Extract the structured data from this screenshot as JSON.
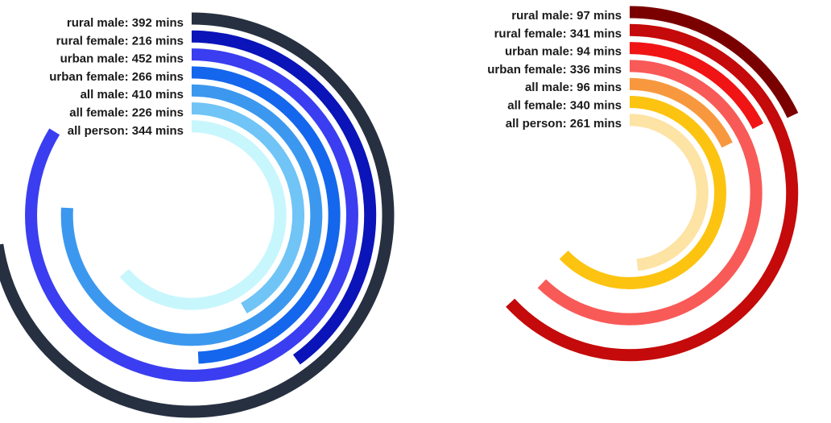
{
  "chart_data": [
    {
      "type": "radial-bar",
      "unit": "mins",
      "max": 540,
      "series": [
        {
          "label": "rural male: 392 mins",
          "value": 392,
          "color": "#263040"
        },
        {
          "label": "rural female: 216 mins",
          "value": 216,
          "color": "#0a14b8"
        },
        {
          "label": "urban male: 452 mins",
          "value": 452,
          "color": "#3a3ef0"
        },
        {
          "label": "urban female: 266 mins",
          "value": 266,
          "color": "#1466ec"
        },
        {
          "label": "all male: 410 mins",
          "value": 410,
          "color": "#3c98ef"
        },
        {
          "label": "all female: 226 mins",
          "value": 226,
          "color": "#70c4f6"
        },
        {
          "label": "all person: 344 mins",
          "value": 344,
          "color": "#c8f6fd"
        }
      ]
    },
    {
      "type": "radial-bar",
      "unit": "mins",
      "max": 540,
      "series": [
        {
          "label": "rural male: 97 mins",
          "value": 97,
          "color": "#7a0000"
        },
        {
          "label": "rural female: 341 mins",
          "value": 341,
          "color": "#c40a0a"
        },
        {
          "label": "urban male: 94 mins",
          "value": 94,
          "color": "#f01414"
        },
        {
          "label": "urban female: 336 mins",
          "value": 336,
          "color": "#f85a58"
        },
        {
          "label": "all male: 96 mins",
          "value": 96,
          "color": "#f7983e"
        },
        {
          "label": "all female: 340 mins",
          "value": 340,
          "color": "#fcc410"
        },
        {
          "label": "all person: 261 mins",
          "value": 261,
          "color": "#fde3a4"
        }
      ]
    }
  ]
}
